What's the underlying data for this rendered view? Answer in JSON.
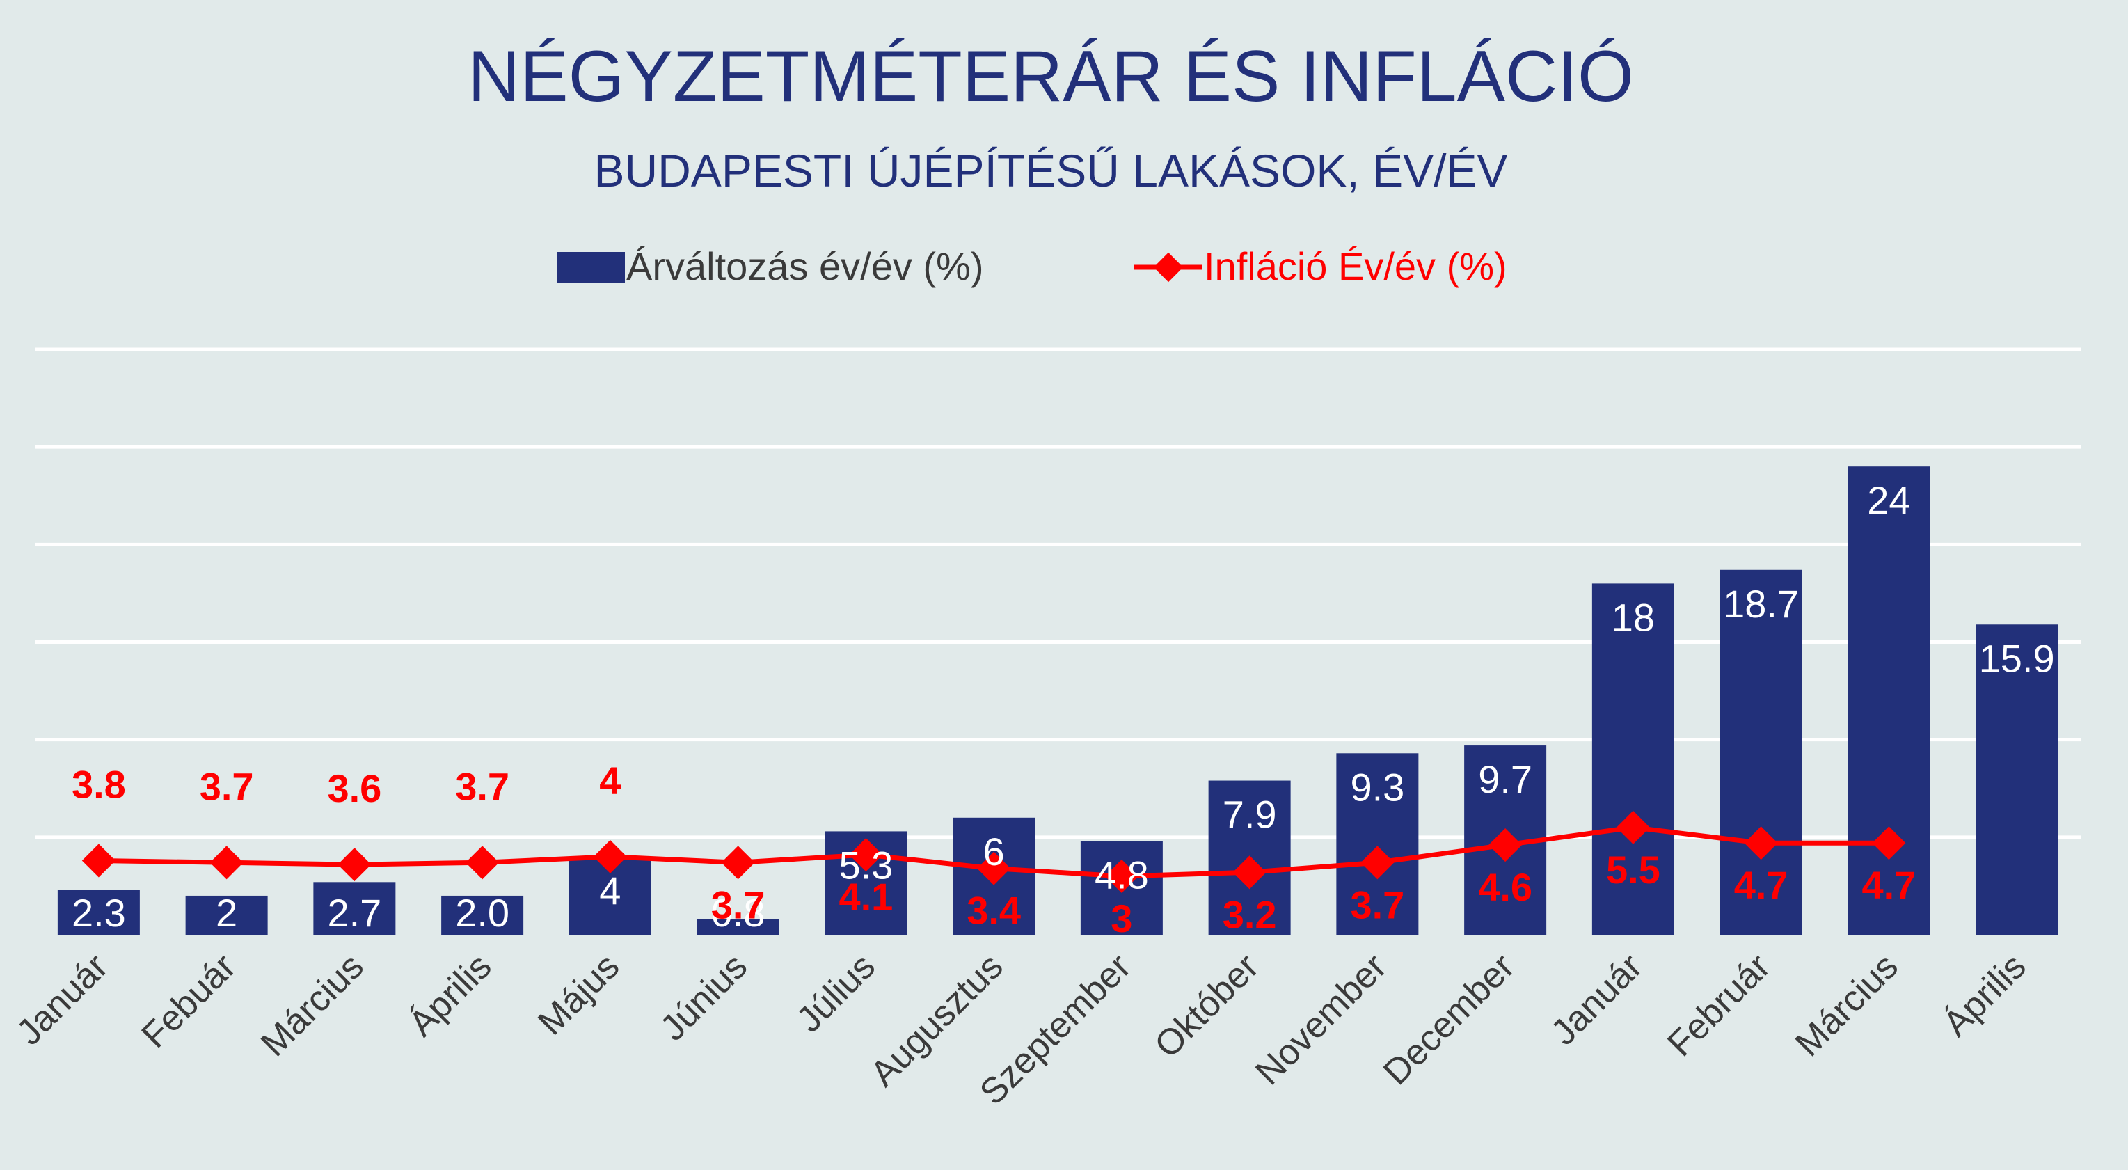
{
  "colors": {
    "background": "#e1eaea",
    "bar": "#22307a",
    "line": "#ff0000",
    "title": "#22307a",
    "grid": "#ffffff",
    "bar_label": "#ffffff",
    "axis_text": "#3a3a3a"
  },
  "chart_data": {
    "type": "bar",
    "title": "NÉGYZETMÉTERÁR ÉS INFLÁCIÓ",
    "subtitle": "BUDAPESTI ÚJÉPÍTÉSŰ LAKÁSOK, ÉV/ÉV",
    "legend_position": "top-center",
    "grid": true,
    "categories": [
      "Január",
      "Febuár",
      "Március",
      "Április",
      "Május",
      "Június",
      "Július",
      "Augusztus",
      "Szeptember",
      "Október",
      "November",
      "December",
      "Január",
      "Február",
      "Március",
      "Április"
    ],
    "ylim": [
      0,
      30
    ],
    "y_gridlines": [
      5,
      10,
      15,
      20,
      25,
      30
    ],
    "series": [
      {
        "name": "Árváltozás év/év (%)",
        "type": "bar",
        "values": [
          2.3,
          2,
          2.7,
          2.0,
          4,
          0.8,
          5.3,
          6,
          4.8,
          7.9,
          9.3,
          9.7,
          18,
          18.7,
          24,
          15.9
        ],
        "labels": [
          "2.3",
          "2",
          "2.7",
          "2.0",
          "4",
          "0.8",
          "5.3",
          "6",
          "4.8",
          "7.9",
          "9.3",
          "9.7",
          "18",
          "18.7",
          "24",
          "15.9"
        ]
      },
      {
        "name": "Infláció Év/év (%)",
        "type": "line",
        "values": [
          3.8,
          3.7,
          3.6,
          3.7,
          4,
          3.7,
          4.1,
          3.4,
          3,
          3.2,
          3.7,
          4.6,
          5.5,
          4.7,
          4.7,
          null
        ],
        "labels": [
          "3.8",
          "3.7",
          "3.6",
          "3.7",
          "4",
          "3.7",
          "4.1",
          "3.4",
          "3",
          "3.2",
          "3.7",
          "4.6",
          "5.5",
          "4.7",
          "4.7",
          ""
        ]
      }
    ]
  }
}
